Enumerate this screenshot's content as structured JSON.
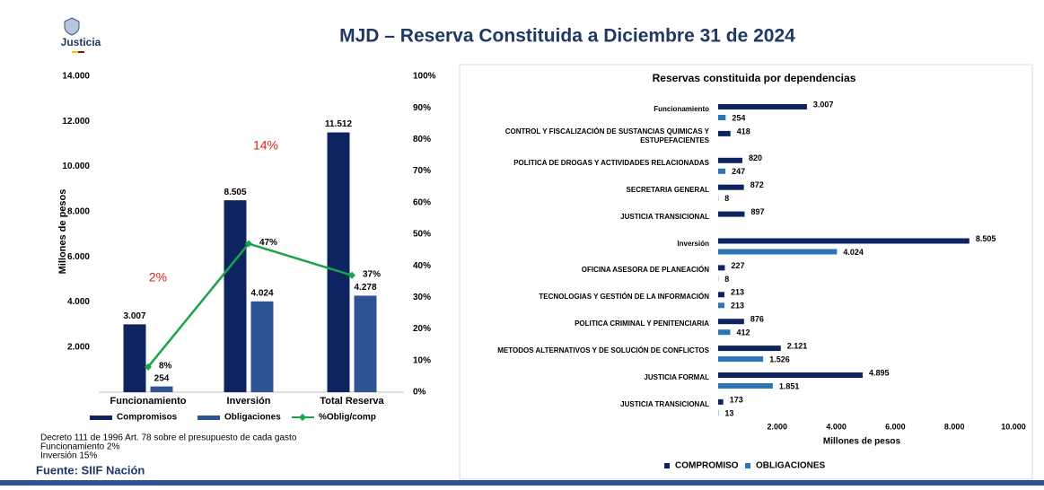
{
  "header": {
    "logo": "Justicia",
    "title": "MJD – Reserva Constituida a Diciembre 31 de 2024"
  },
  "notes": [
    "Decreto 111 de 1996 Art. 78 sobre el presupuesto de cada gasto",
    "Funcionamiento 2%",
    "Inversión 15%"
  ],
  "source": "Fuente: SIIF Nación",
  "chart_data": [
    {
      "type": "bar",
      "y_label": "Millones de pesos",
      "categories": [
        "Funcionamiento",
        "Inversión",
        "Total Reserva"
      ],
      "series": [
        {
          "name": "Compromisos",
          "color": "#0d2461",
          "values": [
            3007,
            8505,
            11512
          ],
          "value_labels": [
            "3.007",
            "8.505",
            "11.512"
          ]
        },
        {
          "name": "Obligaciones",
          "color": "#2f5496",
          "values": [
            254,
            4024,
            4278
          ],
          "value_labels": [
            "254",
            "4.024",
            "4.278"
          ]
        },
        {
          "name": "%Oblig/comp",
          "type": "line",
          "axis": "y2",
          "color": "#1aa34a",
          "values": [
            8,
            47,
            37
          ],
          "value_labels": [
            "8%",
            "47%",
            "37%"
          ]
        }
      ],
      "ylim": [
        0,
        14000
      ],
      "yticks": [
        {
          "value": 2000,
          "label": "2.000"
        },
        {
          "value": 4000,
          "label": "4.000"
        },
        {
          "value": 6000,
          "label": "6.000"
        },
        {
          "value": 8000,
          "label": "8.000"
        },
        {
          "value": 10000,
          "label": "10.000"
        },
        {
          "value": 12000,
          "label": "12.000"
        },
        {
          "value": 14000,
          "label": "14.000"
        }
      ],
      "y2lim": [
        0,
        100
      ],
      "y2ticks": [
        {
          "value": 0,
          "label": "0%"
        },
        {
          "value": 10,
          "label": "10%"
        },
        {
          "value": 20,
          "label": "20%"
        },
        {
          "value": 30,
          "label": "30%"
        },
        {
          "value": 40,
          "label": "40%"
        },
        {
          "value": 50,
          "label": "50%"
        },
        {
          "value": 60,
          "label": "60%"
        },
        {
          "value": 70,
          "label": "70%"
        },
        {
          "value": 80,
          "label": "80%"
        },
        {
          "value": 90,
          "label": "90%"
        },
        {
          "value": 100,
          "label": "100%"
        }
      ],
      "annotations": [
        "2%",
        "14%"
      ],
      "grid": false
    },
    {
      "type": "hbar",
      "title": "Reservas constituida por dependencias",
      "x_label": "Millones de pesos",
      "categories": [
        "Funcionamiento",
        "CONTROL Y FISCALIZACIÓN DE SUSTANCIAS QUIMICAS Y ESTUPEFACIENTES",
        "POLITICA DE DROGAS Y ACTIVIDADES RELACIONADAS",
        "SECRETARIA GENERAL",
        "JUSTICIA TRANSICIONAL",
        "Inversión",
        "OFICINA ASESORA DE PLANEACIÓN",
        "TECNOLOGIAS Y GESTIÓN DE LA INFORMACIÓN",
        "POLITICA CRIMINAL Y PENITENCIARIA",
        "METODOS ALTERNATIVOS Y DE SOLUCIÓN DE CONFLICTOS",
        "JUSTICIA FORMAL",
        "JUSTICIA TRANSICIONAL"
      ],
      "series": [
        {
          "name": "COMPROMISO",
          "color": "#0d2461",
          "values": [
            3007,
            418,
            820,
            872,
            897,
            8505,
            227,
            213,
            876,
            2121,
            4895,
            173
          ],
          "value_labels": [
            "3.007",
            "418",
            "820",
            "872",
            "897",
            "8.505",
            "227",
            "213",
            "876",
            "2.121",
            "4.895",
            "173"
          ]
        },
        {
          "name": "OBLIGACIONES",
          "color": "#2e75b6",
          "values": [
            254,
            null,
            247,
            8,
            null,
            4024,
            8,
            213,
            412,
            1526,
            1851,
            13
          ],
          "value_labels": [
            "254",
            null,
            "247",
            "8",
            null,
            "4.024",
            "8",
            "213",
            "412",
            "1.526",
            "1.851",
            "13"
          ]
        }
      ],
      "xlim": [
        0,
        10000
      ],
      "xticks": [
        {
          "value": 2000,
          "label": "2.000"
        },
        {
          "value": 4000,
          "label": "4.000"
        },
        {
          "value": 6000,
          "label": "6.000"
        },
        {
          "value": 8000,
          "label": "8.000"
        },
        {
          "value": 10000,
          "label": "10.000"
        }
      ],
      "legend": "bottom",
      "grid": false
    }
  ]
}
